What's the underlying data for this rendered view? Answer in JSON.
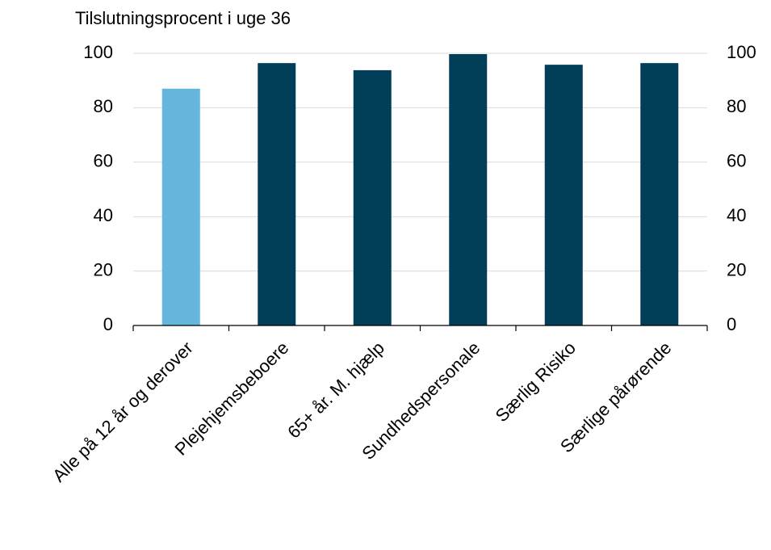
{
  "chart_data": {
    "type": "bar",
    "title": "Tilslutningsprocent i uge 36",
    "categories": [
      "Alle på 12 år og derover",
      "Plejehjemsbeboere",
      "65+ år. M. hjælp",
      "Sundhedspersonale",
      "Særlig Risiko",
      "Særlige pårørende"
    ],
    "values": [
      87,
      96.4,
      93.8,
      99.7,
      95.8,
      96.4
    ],
    "colors": [
      "#65b5dc",
      "#003f57",
      "#003f57",
      "#003f57",
      "#003f57",
      "#003f57"
    ],
    "ylim": [
      0,
      100
    ],
    "yticks": [
      0,
      20,
      40,
      60,
      80,
      100
    ],
    "y2lim": [
      0,
      100
    ],
    "y2ticks": [
      0,
      20,
      40,
      60,
      80,
      100
    ],
    "grid": true
  }
}
